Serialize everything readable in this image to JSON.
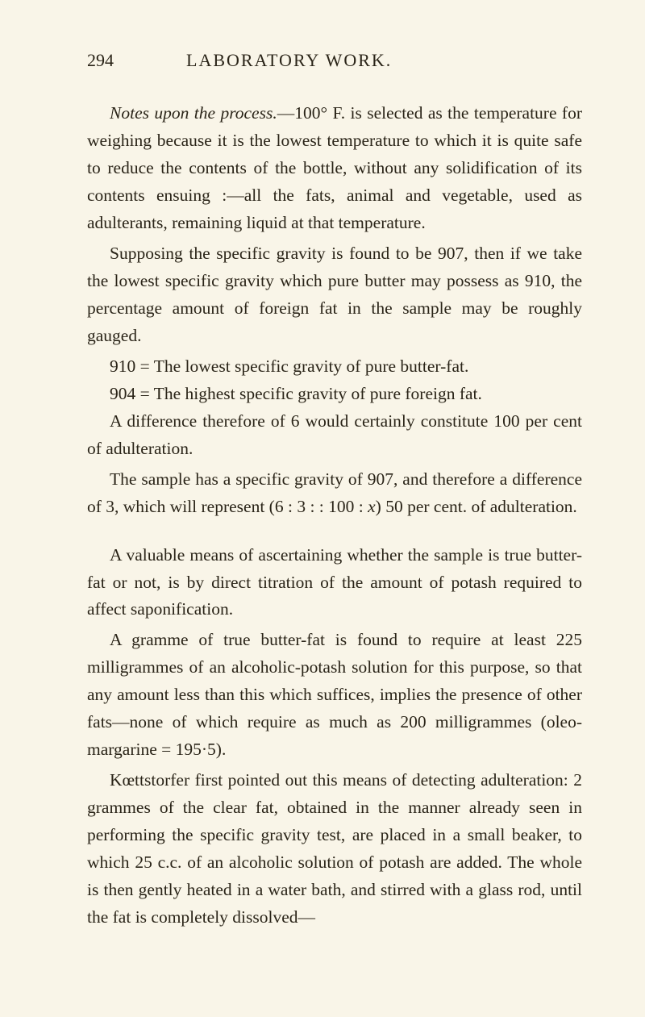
{
  "header": {
    "pageNumber": "294",
    "title": "LABORATORY WORK."
  },
  "paragraphs": {
    "p1": {
      "lead": "Notes upon the process.",
      "text": "—100° F. is selected as the temperature for weighing because it is the lowest temperature to which it is quite safe to reduce the contents of the bottle, without any solidification of its contents ensuing :—all the fats, animal and vegetable, used as adulterants, remaining liquid at that temperature."
    },
    "p2": "Supposing the specific gravity is found to be 907, then if we take the lowest specific gravity which pure butter may possess as 910, the percentage amount of foreign fat in the sample may be roughly gauged.",
    "li1": "910 = The lowest specific gravity of pure butter-fat.",
    "li2": "904 = The highest specific gravity of pure foreign fat.",
    "p3": "A difference therefore of 6 would certainly constitute 100 per cent of adulteration.",
    "p4_a": "The sample has a specific gravity of 907, and therefore a difference of 3, which will represent (6 : 3 : : 100 : ",
    "p4_x": "x",
    "p4_b": ") 50 per cent. of adulteration.",
    "p5": "A valuable means of ascertaining whether the sample is true butter-fat or not, is by direct titration of the amount of potash required to affect saponification.",
    "p6": "A gramme of true butter-fat is found to require at least 225 milligrammes of an alcoholic-potash solution for this purpose, so that any amount less than this which suffices, implies the presence of other fats—none of which require as much as 200 milligrammes (oleo-margarine = 195·5).",
    "p7": "Kœttstorfer first pointed out this means of detecting adulteration: 2 grammes of the clear fat, obtained in the manner already seen in performing the specific gravity test, are placed in a small beaker, to which 25 c.c. of an alcoholic solution of potash are added. The whole is then gently heated in a water bath, and stirred with a glass rod, until the fat is completely dissolved—"
  }
}
